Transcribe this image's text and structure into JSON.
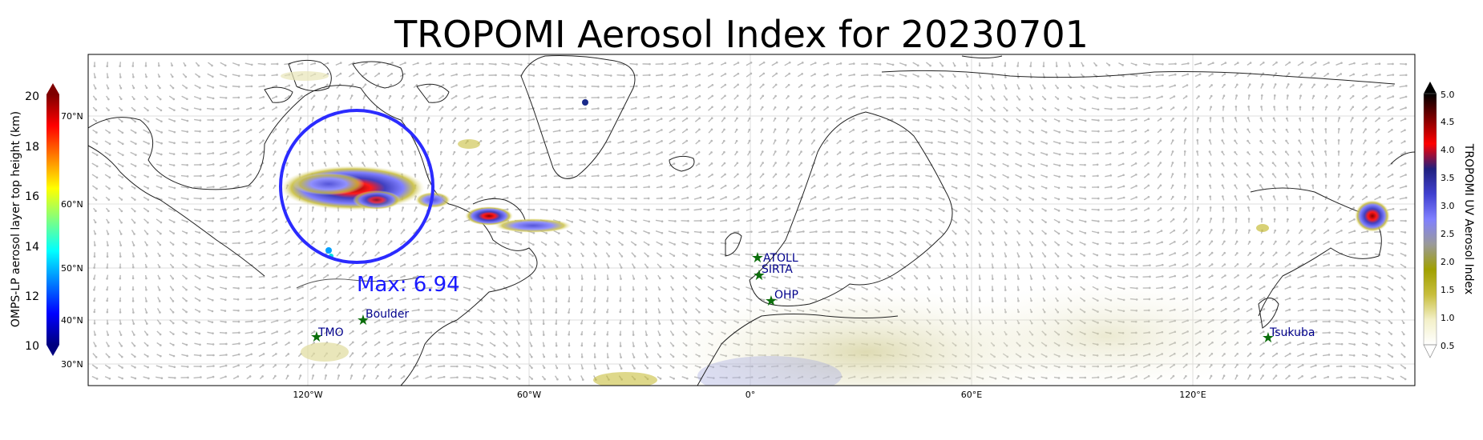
{
  "title": "TROPOMI Aerosol Index for 20230701",
  "max_label": "Max: 6.94",
  "longitude_ticks": [
    "120°W",
    "60°W",
    "0°",
    "60°E",
    "120°E"
  ],
  "latitude_ticks": [
    "70°N",
    "60°N",
    "50°N",
    "40°N",
    "30°N"
  ],
  "stations": [
    {
      "name": "ATOLL"
    },
    {
      "name": "SIRTA"
    },
    {
      "name": "OHP"
    },
    {
      "name": "Boulder"
    },
    {
      "name": "TMO"
    },
    {
      "name": "Tsukuba"
    }
  ],
  "left_colorbar": {
    "label": "OMPS-LP aerosol layer top height (km)",
    "ticks": [
      "20",
      "18",
      "16",
      "14",
      "12",
      "10"
    ],
    "min": 10,
    "max": 20,
    "colors": [
      "#00007f",
      "#0000ff",
      "#0080ff",
      "#00ffff",
      "#80ff80",
      "#ffff00",
      "#ff8000",
      "#ff0000",
      "#7f0000"
    ]
  },
  "right_colorbar": {
    "label": "TROPOMI UV Aerosol Index",
    "ticks": [
      "5.0",
      "4.5",
      "4.0",
      "3.5",
      "3.0",
      "2.5",
      "2.0",
      "1.5",
      "1.0",
      "0.5"
    ],
    "min": 0.5,
    "max": 5.0,
    "colors": [
      "#ffffff",
      "#f3f0c8",
      "#c8be3c",
      "#a0a000",
      "#9a9a9a",
      "#8080ff",
      "#4040d0",
      "#20207f",
      "#ff0000",
      "#800000",
      "#000000"
    ]
  },
  "colors": {
    "circle": "#2b2bff",
    "max_label": "#1a1aff",
    "station_marker": "#0b6e0b",
    "station_label": "#00008b",
    "coastline": "#222222",
    "wind_arrows": "#b9b9b9"
  }
}
